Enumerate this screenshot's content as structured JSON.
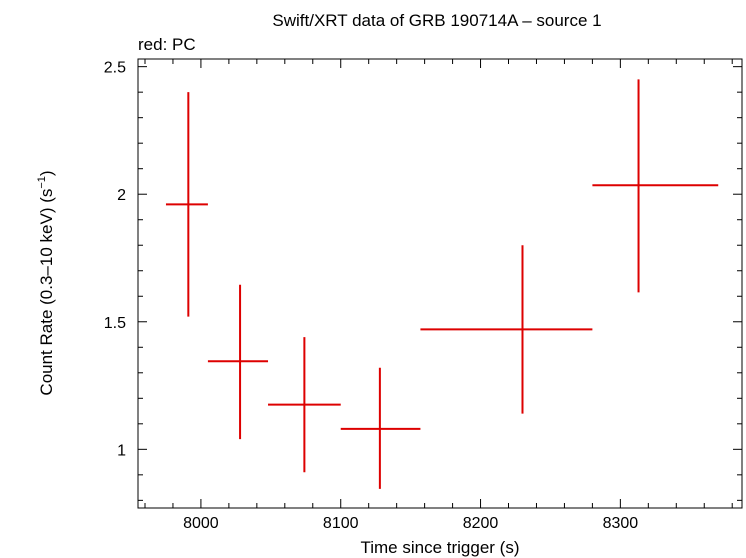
{
  "chart_data": {
    "type": "scatter",
    "title": "Swift/XRT data of GRB 190714A – source 1",
    "subtitle": "red: PC",
    "xlabel": "Time since trigger (s)",
    "ylabel": "Count Rate (0.3–10 keV) (s",
    "ylabel_sup": "−1",
    "ylabel_close": ")",
    "xlim": [
      7955,
      8387
    ],
    "ylim": [
      0.77,
      2.53
    ],
    "xticks": [
      8000,
      8100,
      8200,
      8300
    ],
    "xtick_labels": [
      "8000",
      "8100",
      "8200",
      "8300"
    ],
    "yticks": [
      1,
      1.5,
      2,
      2.5
    ],
    "ytick_labels": [
      "1",
      "1.5",
      "2",
      "2.5"
    ],
    "grid": false,
    "series_color": "#dd0000",
    "series": [
      {
        "points": [
          {
            "x": 7991,
            "xlo": 7975,
            "xhi": 8005,
            "y": 1.96,
            "ylo": 1.52,
            "yhi": 2.4
          },
          {
            "x": 8028,
            "xlo": 8005,
            "xhi": 8048,
            "y": 1.345,
            "ylo": 1.04,
            "yhi": 1.645
          },
          {
            "x": 8074,
            "xlo": 8048,
            "xhi": 8100,
            "y": 1.175,
            "ylo": 0.91,
            "yhi": 1.44
          },
          {
            "x": 8128,
            "xlo": 8100,
            "xhi": 8157,
            "y": 1.08,
            "ylo": 0.845,
            "yhi": 1.32
          },
          {
            "x": 8230,
            "xlo": 8157,
            "xhi": 8280,
            "y": 1.47,
            "ylo": 1.14,
            "yhi": 1.8
          },
          {
            "x": 8313,
            "xlo": 8280,
            "xhi": 8370,
            "y": 2.035,
            "ylo": 1.615,
            "yhi": 2.45
          }
        ]
      }
    ]
  }
}
